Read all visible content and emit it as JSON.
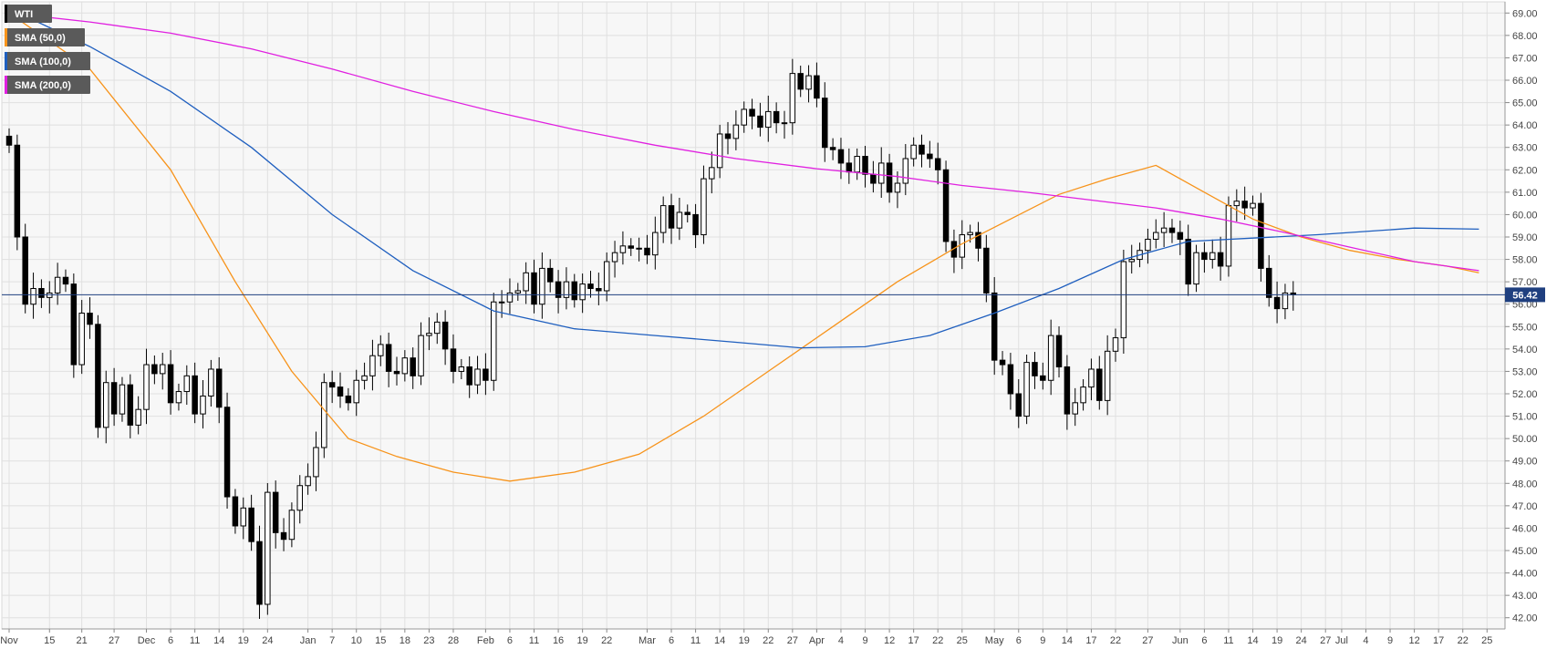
{
  "chart_data": {
    "type": "candlestick",
    "instrument": "WTI",
    "current_price": "56.42",
    "legend": [
      {
        "label": "WTI",
        "color": "#000000"
      },
      {
        "label": "SMA (50,0)",
        "color": "#f7931a"
      },
      {
        "label": "SMA (100,0)",
        "color": "#1f5fbf"
      },
      {
        "label": "SMA (200,0)",
        "color": "#e020e0"
      }
    ],
    "y_axis": {
      "min": 41.5,
      "max": 69.5,
      "ticks": [
        "42.00",
        "43.00",
        "44.00",
        "45.00",
        "46.00",
        "47.00",
        "48.00",
        "49.00",
        "50.00",
        "51.00",
        "52.00",
        "53.00",
        "54.00",
        "55.00",
        "56.00",
        "57.00",
        "58.00",
        "59.00",
        "60.00",
        "61.00",
        "62.00",
        "63.00",
        "64.00",
        "65.00",
        "66.00",
        "67.00",
        "68.00",
        "69.00"
      ]
    },
    "x_axis_labels": [
      {
        "label": "Nov",
        "i": 0
      },
      {
        "label": "15",
        "i": 5
      },
      {
        "label": "21",
        "i": 9
      },
      {
        "label": "27",
        "i": 13
      },
      {
        "label": "Dec",
        "i": 17
      },
      {
        "label": "6",
        "i": 20
      },
      {
        "label": "11",
        "i": 23
      },
      {
        "label": "14",
        "i": 26
      },
      {
        "label": "19",
        "i": 29
      },
      {
        "label": "24",
        "i": 32
      },
      {
        "label": "Jan",
        "i": 37
      },
      {
        "label": "7",
        "i": 40
      },
      {
        "label": "10",
        "i": 43
      },
      {
        "label": "15",
        "i": 46
      },
      {
        "label": "18",
        "i": 49
      },
      {
        "label": "23",
        "i": 52
      },
      {
        "label": "28",
        "i": 55
      },
      {
        "label": "Feb",
        "i": 59
      },
      {
        "label": "6",
        "i": 62
      },
      {
        "label": "11",
        "i": 65
      },
      {
        "label": "16",
        "i": 68
      },
      {
        "label": "19",
        "i": 71
      },
      {
        "label": "22",
        "i": 74
      },
      {
        "label": "Mar",
        "i": 79
      },
      {
        "label": "6",
        "i": 82
      },
      {
        "label": "11",
        "i": 85
      },
      {
        "label": "14",
        "i": 88
      },
      {
        "label": "19",
        "i": 91
      },
      {
        "label": "22",
        "i": 94
      },
      {
        "label": "27",
        "i": 97
      },
      {
        "label": "Apr",
        "i": 100
      },
      {
        "label": "4",
        "i": 103
      },
      {
        "label": "9",
        "i": 106
      },
      {
        "label": "12",
        "i": 109
      },
      {
        "label": "17",
        "i": 112
      },
      {
        "label": "22",
        "i": 115
      },
      {
        "label": "25",
        "i": 118
      },
      {
        "label": "May",
        "i": 122
      },
      {
        "label": "6",
        "i": 125
      },
      {
        "label": "9",
        "i": 128
      },
      {
        "label": "14",
        "i": 131
      },
      {
        "label": "17",
        "i": 134
      },
      {
        "label": "22",
        "i": 137
      },
      {
        "label": "27",
        "i": 141
      },
      {
        "label": "Jun",
        "i": 145
      },
      {
        "label": "6",
        "i": 148
      },
      {
        "label": "11",
        "i": 151
      },
      {
        "label": "14",
        "i": 154
      },
      {
        "label": "19",
        "i": 157
      },
      {
        "label": "24",
        "i": 160
      },
      {
        "label": "27",
        "i": 163
      },
      {
        "label": "Jul",
        "i": 165
      },
      {
        "label": "4",
        "i": 168
      },
      {
        "label": "9",
        "i": 171
      },
      {
        "label": "12",
        "i": 174
      },
      {
        "label": "17",
        "i": 177
      },
      {
        "label": "22",
        "i": 180
      },
      {
        "label": "25",
        "i": 183
      }
    ],
    "closes": [
      63.1,
      59,
      56,
      56.7,
      56.3,
      56.5,
      57.2,
      56.9,
      53.3,
      55.6,
      55.1,
      50.5,
      52.5,
      51.1,
      52.4,
      50.6,
      51.3,
      53.3,
      52.9,
      53.3,
      51.6,
      52.1,
      52.8,
      51.1,
      51.9,
      53.1,
      51.4,
      47.4,
      46.1,
      46.9,
      45.4,
      42.6,
      47.6,
      45.8,
      45.5,
      46.8,
      47.9,
      48.3,
      49.6,
      52.5,
      52.3,
      51.9,
      51.6,
      52.6,
      52.8,
      53.7,
      54.2,
      53,
      52.9,
      53.6,
      52.8,
      54.6,
      54.7,
      55.2,
      54,
      53,
      53.2,
      52.4,
      53.1,
      52.6,
      56.1,
      56.1,
      56.5,
      56.6,
      57.4,
      56,
      57.6,
      57,
      56.3,
      57,
      56.2,
      56.9,
      56.7,
      56.6,
      57.9,
      58.3,
      58.6,
      58.5,
      58.5,
      58.2,
      59.2,
      60.4,
      59.4,
      60.1,
      60,
      59.1,
      61.6,
      62.1,
      63.6,
      63.4,
      64,
      64.7,
      64.4,
      63.9,
      64.6,
      64.1,
      64.1,
      66.3,
      65.6,
      66.2,
      65.2,
      63,
      62.9,
      62.3,
      61.9,
      62.6,
      61.8,
      61.4,
      62.3,
      61,
      61.4,
      62.5,
      63.1,
      62.7,
      62.5,
      62,
      58.8,
      58.1,
      59.1,
      59.2,
      58.5,
      56.5,
      53.5,
      53.3,
      52,
      51,
      53.4,
      52.8,
      52.6,
      54.6,
      53.2,
      51.1,
      51.6,
      52.3,
      53.1,
      51.7,
      53.9,
      54.5,
      57.9,
      58,
      58.4,
      58.9,
      59.2,
      59.4,
      59.2,
      58.9,
      56.9,
      58.3,
      58,
      58.3,
      57.7,
      60.4,
      60.6,
      60.3,
      60.5,
      57.6,
      56.3,
      55.8,
      56.5,
      56.42
    ],
    "ohlc_note": "Daily candles Nov to 22 Jul; close values in USD",
    "sma": {
      "SMA (50,0)": [
        [
          0,
          69.0
        ],
        [
          10,
          66.5
        ],
        [
          20,
          62
        ],
        [
          28,
          57
        ],
        [
          35,
          53
        ],
        [
          42,
          50.0
        ],
        [
          48,
          49.2
        ],
        [
          55,
          48.5
        ],
        [
          62,
          48.1
        ],
        [
          70,
          48.5
        ],
        [
          78,
          49.3
        ],
        [
          86,
          51.0
        ],
        [
          94,
          53.0
        ],
        [
          102,
          55.0
        ],
        [
          110,
          57.0
        ],
        [
          118,
          58.7
        ],
        [
          124,
          59.8
        ],
        [
          130,
          60.9
        ],
        [
          136,
          61.6
        ],
        [
          142,
          62.2
        ],
        [
          148,
          61.0
        ],
        [
          154,
          59.8
        ],
        [
          160,
          59.0
        ],
        [
          166,
          58.4
        ],
        [
          172,
          58.0
        ],
        [
          178,
          57.7
        ],
        [
          182,
          57.4
        ]
      ],
      "SMA (100,0)": [
        [
          0,
          69.2
        ],
        [
          10,
          67.5
        ],
        [
          20,
          65.5
        ],
        [
          30,
          63.0
        ],
        [
          40,
          60.0
        ],
        [
          50,
          57.5
        ],
        [
          60,
          55.7
        ],
        [
          70,
          54.9
        ],
        [
          80,
          54.6
        ],
        [
          90,
          54.3
        ],
        [
          98,
          54.05
        ],
        [
          106,
          54.1
        ],
        [
          114,
          54.6
        ],
        [
          122,
          55.6
        ],
        [
          130,
          56.7
        ],
        [
          138,
          58.0
        ],
        [
          146,
          58.8
        ],
        [
          154,
          58.95
        ],
        [
          162,
          59.1
        ],
        [
          168,
          59.25
        ],
        [
          174,
          59.4
        ],
        [
          182,
          59.35
        ]
      ],
      "SMA (200,0)": [
        [
          0,
          69.0
        ],
        [
          10,
          68.6
        ],
        [
          20,
          68.1
        ],
        [
          30,
          67.4
        ],
        [
          40,
          66.5
        ],
        [
          50,
          65.5
        ],
        [
          60,
          64.6
        ],
        [
          70,
          63.8
        ],
        [
          80,
          63.1
        ],
        [
          90,
          62.5
        ],
        [
          100,
          62.05
        ],
        [
          110,
          61.7
        ],
        [
          118,
          61.3
        ],
        [
          126,
          61.0
        ],
        [
          134,
          60.65
        ],
        [
          142,
          60.3
        ],
        [
          150,
          59.8
        ],
        [
          158,
          59.2
        ],
        [
          166,
          58.55
        ],
        [
          174,
          57.9
        ],
        [
          182,
          57.5
        ]
      ]
    },
    "colors": {
      "up_body": "#ffffff",
      "down_body": "#000000",
      "wick": "#000000",
      "price_line": "#1f3f7f",
      "grid": "#e0e0e0",
      "axis_bg": "#ffffff",
      "plot_bg": "#f7f7f7"
    }
  }
}
